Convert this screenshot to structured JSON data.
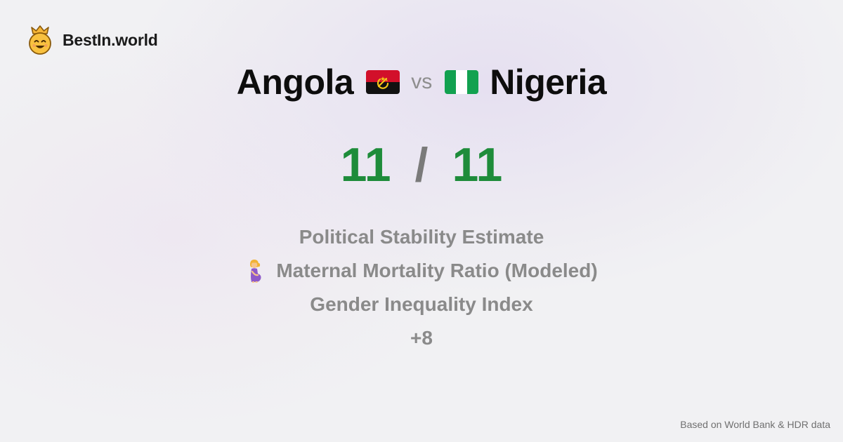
{
  "brand": {
    "name": "BestIn.world",
    "logo_icon": "crowned-smiley-icon"
  },
  "comparison": {
    "left": {
      "name": "Angola",
      "flag_icon": "angola-flag-icon",
      "score": "11"
    },
    "separator": "vs",
    "right": {
      "name": "Nigeria",
      "flag_icon": "nigeria-flag-icon",
      "score": "11"
    },
    "score_separator": "/"
  },
  "metrics": [
    {
      "label": "Political Stability Estimate"
    },
    {
      "label": "Maternal Mortality Ratio (Modeled)",
      "icon": "pregnant-woman-icon"
    },
    {
      "label": "Gender Inequality Index"
    },
    {
      "label": "+8"
    }
  ],
  "footer": {
    "source": "Based on World Bank & HDR data"
  },
  "colors": {
    "score": "#1e8c3a",
    "muted_text": "#8a8a8a",
    "title_text": "#0d0d0d"
  }
}
